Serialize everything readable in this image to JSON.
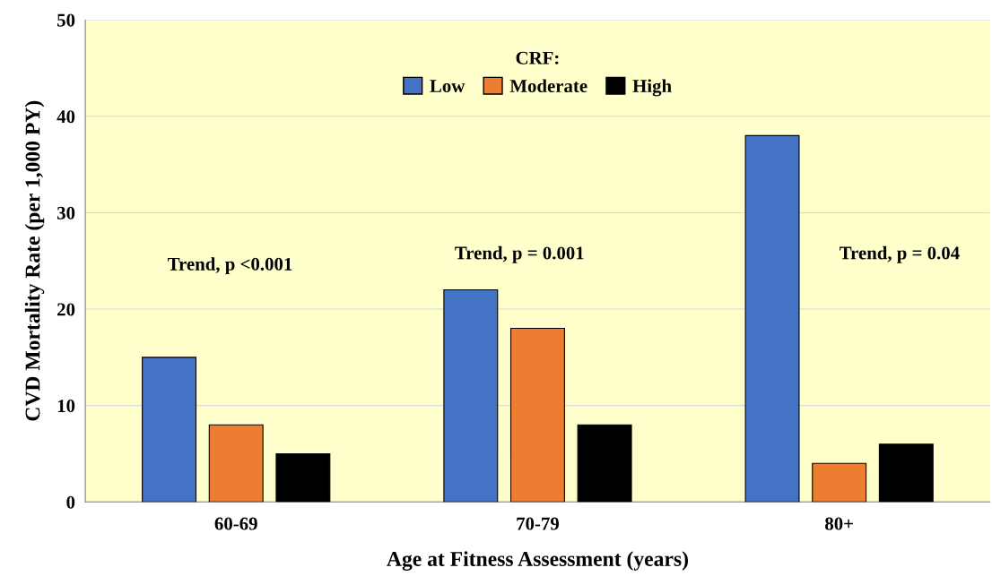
{
  "chart_data": {
    "type": "bar",
    "xlabel": "Age at Fitness Assessment (years)",
    "ylabel": "CVD Mortality Rate (per 1,000 PY)",
    "legend_title": "CRF:",
    "categories": [
      "60-69",
      "70-79",
      "80+"
    ],
    "series": [
      {
        "name": "Low",
        "color": "#4472c4",
        "values": [
          15,
          22,
          38
        ]
      },
      {
        "name": "Moderate",
        "color": "#ed7d31",
        "values": [
          8,
          18,
          4
        ]
      },
      {
        "name": "High",
        "color": "#000000",
        "values": [
          5,
          8,
          6
        ]
      }
    ],
    "ylim": [
      0,
      50
    ],
    "yticks": [
      0,
      10,
      20,
      30,
      40,
      50
    ],
    "grid": "y",
    "legend": "top",
    "annotations": [
      "Trend, p <0.001",
      "Trend, p = 0.001",
      "Trend, p = 0.04"
    ]
  }
}
